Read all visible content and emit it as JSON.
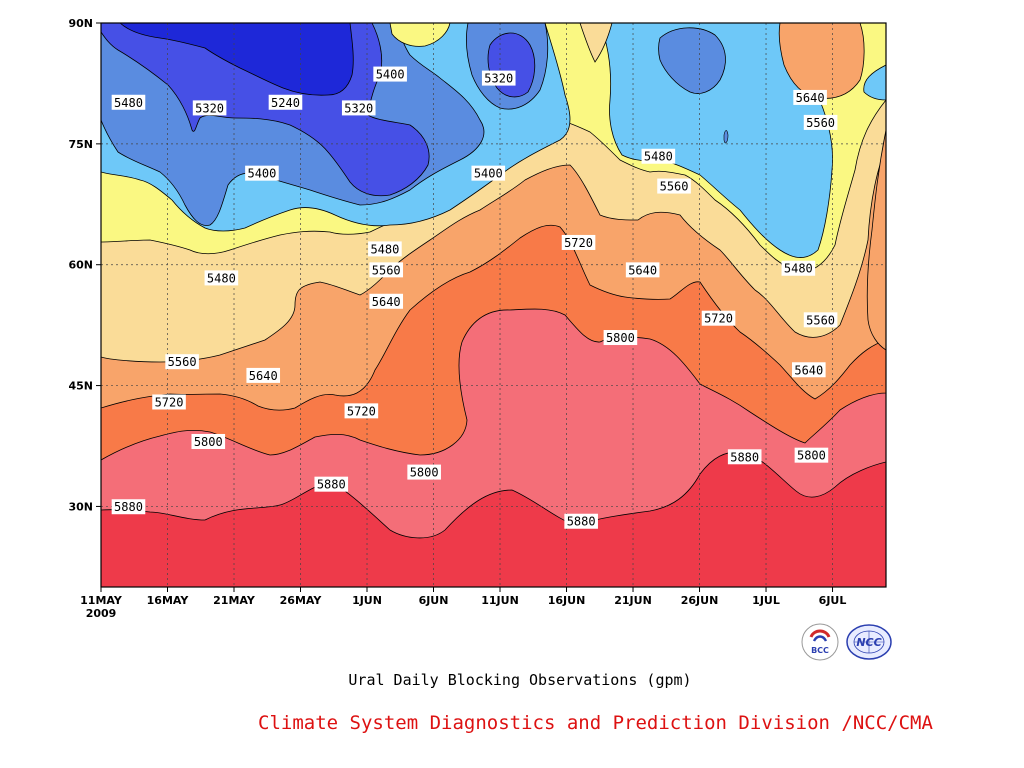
{
  "chart_data": {
    "type": "heatmap",
    "title": "",
    "xlabel": "",
    "ylabel": "",
    "x_tick_labels": [
      "11MAY",
      "16MAY",
      "21MAY",
      "26MAY",
      "1JUN",
      "6JUN",
      "11JUN",
      "16JUN",
      "21JUN",
      "26JUN",
      "1JUL",
      "6JUL"
    ],
    "x_year_label": "2009",
    "x_range_days": [
      0,
      60
    ],
    "y_tick_labels": [
      "30N",
      "45N",
      "60N",
      "75N",
      "90N"
    ],
    "y_range_deg": [
      20,
      90
    ],
    "grid": "dotted",
    "contour_levels": [
      5240,
      5320,
      5400,
      5480,
      5560,
      5640,
      5720,
      5800,
      5880
    ],
    "band_colors": [
      {
        "range": "< 5240",
        "color": "#1e28d8"
      },
      {
        "range": "5240-5320",
        "color": "#4650e6"
      },
      {
        "range": "5320-5400",
        "color": "#5a8ce0"
      },
      {
        "range": "5400-5480",
        "color": "#6ec8f8"
      },
      {
        "range": "5480-5560",
        "color": "#faf882"
      },
      {
        "range": "5560-5640",
        "color": "#fadc98"
      },
      {
        "range": "5640-5720",
        "color": "#f8a46a"
      },
      {
        "range": "5720-5800",
        "color": "#f87a48"
      },
      {
        "range": "5800-5880",
        "color": "#f46e78"
      },
      {
        "range": "> 5880",
        "color": "#ee3a4a"
      }
    ],
    "contour_labels": [
      {
        "text": "5240",
        "day": 14.1,
        "lat": 80.1
      },
      {
        "text": "5320",
        "day": 8.3,
        "lat": 79.4
      },
      {
        "text": "5320",
        "day": 19.7,
        "lat": 79.4
      },
      {
        "text": "5320",
        "day": 30.4,
        "lat": 83.1
      },
      {
        "text": "5400",
        "day": 22.1,
        "lat": 83.6
      },
      {
        "text": "5400",
        "day": 12.3,
        "lat": 71.3
      },
      {
        "text": "5400",
        "day": 29.6,
        "lat": 71.3
      },
      {
        "text": "5480",
        "day": 2.1,
        "lat": 80.1
      },
      {
        "text": "5480",
        "day": 9.2,
        "lat": 58.3
      },
      {
        "text": "5480",
        "day": 21.7,
        "lat": 61.9
      },
      {
        "text": "5480",
        "day": 42.6,
        "lat": 73.4
      },
      {
        "text": "5480",
        "day": 53.3,
        "lat": 59.5
      },
      {
        "text": "5560",
        "day": 6.2,
        "lat": 47.9
      },
      {
        "text": "5560",
        "day": 21.8,
        "lat": 59.3
      },
      {
        "text": "5560",
        "day": 43.8,
        "lat": 69.7
      },
      {
        "text": "5560",
        "day": 55.0,
        "lat": 77.6
      },
      {
        "text": "5560",
        "day": 55.0,
        "lat": 53.1
      },
      {
        "text": "5640",
        "day": 12.4,
        "lat": 46.2
      },
      {
        "text": "5640",
        "day": 21.8,
        "lat": 55.4
      },
      {
        "text": "5640",
        "day": 41.4,
        "lat": 59.3
      },
      {
        "text": "5640",
        "day": 54.2,
        "lat": 80.7
      },
      {
        "text": "5640",
        "day": 54.1,
        "lat": 46.9
      },
      {
        "text": "5720",
        "day": 5.2,
        "lat": 42.9
      },
      {
        "text": "5720",
        "day": 19.9,
        "lat": 41.8
      },
      {
        "text": "5720",
        "day": 36.5,
        "lat": 62.7
      },
      {
        "text": "5720",
        "day": 47.2,
        "lat": 53.3
      },
      {
        "text": "5800",
        "day": 8.2,
        "lat": 38.0
      },
      {
        "text": "5800",
        "day": 24.7,
        "lat": 34.2
      },
      {
        "text": "5800",
        "day": 39.7,
        "lat": 50.9
      },
      {
        "text": "5800",
        "day": 54.3,
        "lat": 36.3
      },
      {
        "text": "5880",
        "day": 2.1,
        "lat": 29.9
      },
      {
        "text": "5880",
        "day": 17.6,
        "lat": 32.7
      },
      {
        "text": "5880",
        "day": 36.7,
        "lat": 28.1
      },
      {
        "text": "5880",
        "day": 49.2,
        "lat": 36.1
      }
    ]
  },
  "caption": "Ural Daily Blocking Observations (gpm)",
  "credit": "Climate System Diagnostics and Prediction Division /NCC/CMA",
  "logos": [
    {
      "name": "BCC",
      "text": "BCC",
      "color": "#d12a2a"
    },
    {
      "name": "NCC",
      "text": "NCC",
      "color": "#2b3fb0"
    }
  ]
}
